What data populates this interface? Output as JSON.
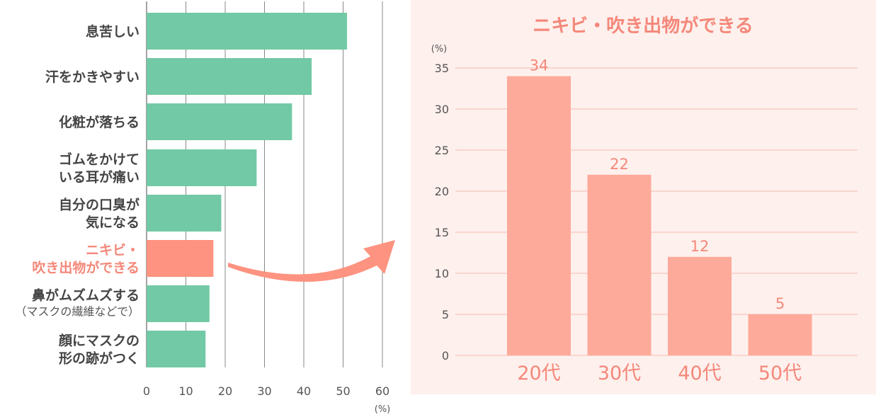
{
  "colors": {
    "green_bar": "#72c9a5",
    "highlight_bar": "#fd9380",
    "highlight_text": "#f4887a",
    "right_bar": "#fdaa9b",
    "right_panel_bg": "#fef0ed",
    "right_text": "#f4887a",
    "grid": "#888888",
    "right_grid": "#f6c5bb"
  },
  "chart_data": [
    {
      "type": "bar",
      "orientation": "horizontal",
      "title": "",
      "xlabel": "",
      "ylabel": "",
      "unit": "(%)",
      "xlim": [
        0,
        60
      ],
      "xticks": [
        "0",
        "10",
        "20",
        "30",
        "40",
        "50",
        "60"
      ],
      "grid": true,
      "categories": [
        {
          "lines": [
            "息苦しい"
          ],
          "sub": "",
          "value": 51,
          "highlight": false
        },
        {
          "lines": [
            "汗をかきやすい"
          ],
          "sub": "",
          "value": 42,
          "highlight": false
        },
        {
          "lines": [
            "化粧が落ちる"
          ],
          "sub": "",
          "value": 37,
          "highlight": false
        },
        {
          "lines": [
            "ゴムをかけて",
            "いる耳が痛い"
          ],
          "sub": "",
          "value": 28,
          "highlight": false
        },
        {
          "lines": [
            "自分の口臭が",
            "気になる"
          ],
          "sub": "",
          "value": 19,
          "highlight": false
        },
        {
          "lines": [
            "ニキビ・",
            "吹き出物ができる"
          ],
          "sub": "",
          "value": 17,
          "highlight": true
        },
        {
          "lines": [
            "鼻がムズムズする"
          ],
          "sub": "（マスクの繊維などで）",
          "value": 16,
          "highlight": false
        },
        {
          "lines": [
            "顔にマスクの",
            "形の跡がつく"
          ],
          "sub": "",
          "value": 15,
          "highlight": false
        }
      ]
    },
    {
      "type": "bar",
      "title": "ニキビ・吹き出物ができる",
      "xlabel": "",
      "ylabel": "",
      "unit": "(%)",
      "ylim": [
        0,
        35
      ],
      "yticks": [
        "0",
        "5",
        "10",
        "15",
        "20",
        "25",
        "30",
        "35"
      ],
      "grid": true,
      "categories": [
        "20代",
        "30代",
        "40代",
        "50代"
      ],
      "values": [
        34,
        22,
        12,
        5
      ],
      "value_labels": [
        "34",
        "22",
        "12",
        "5"
      ]
    }
  ]
}
